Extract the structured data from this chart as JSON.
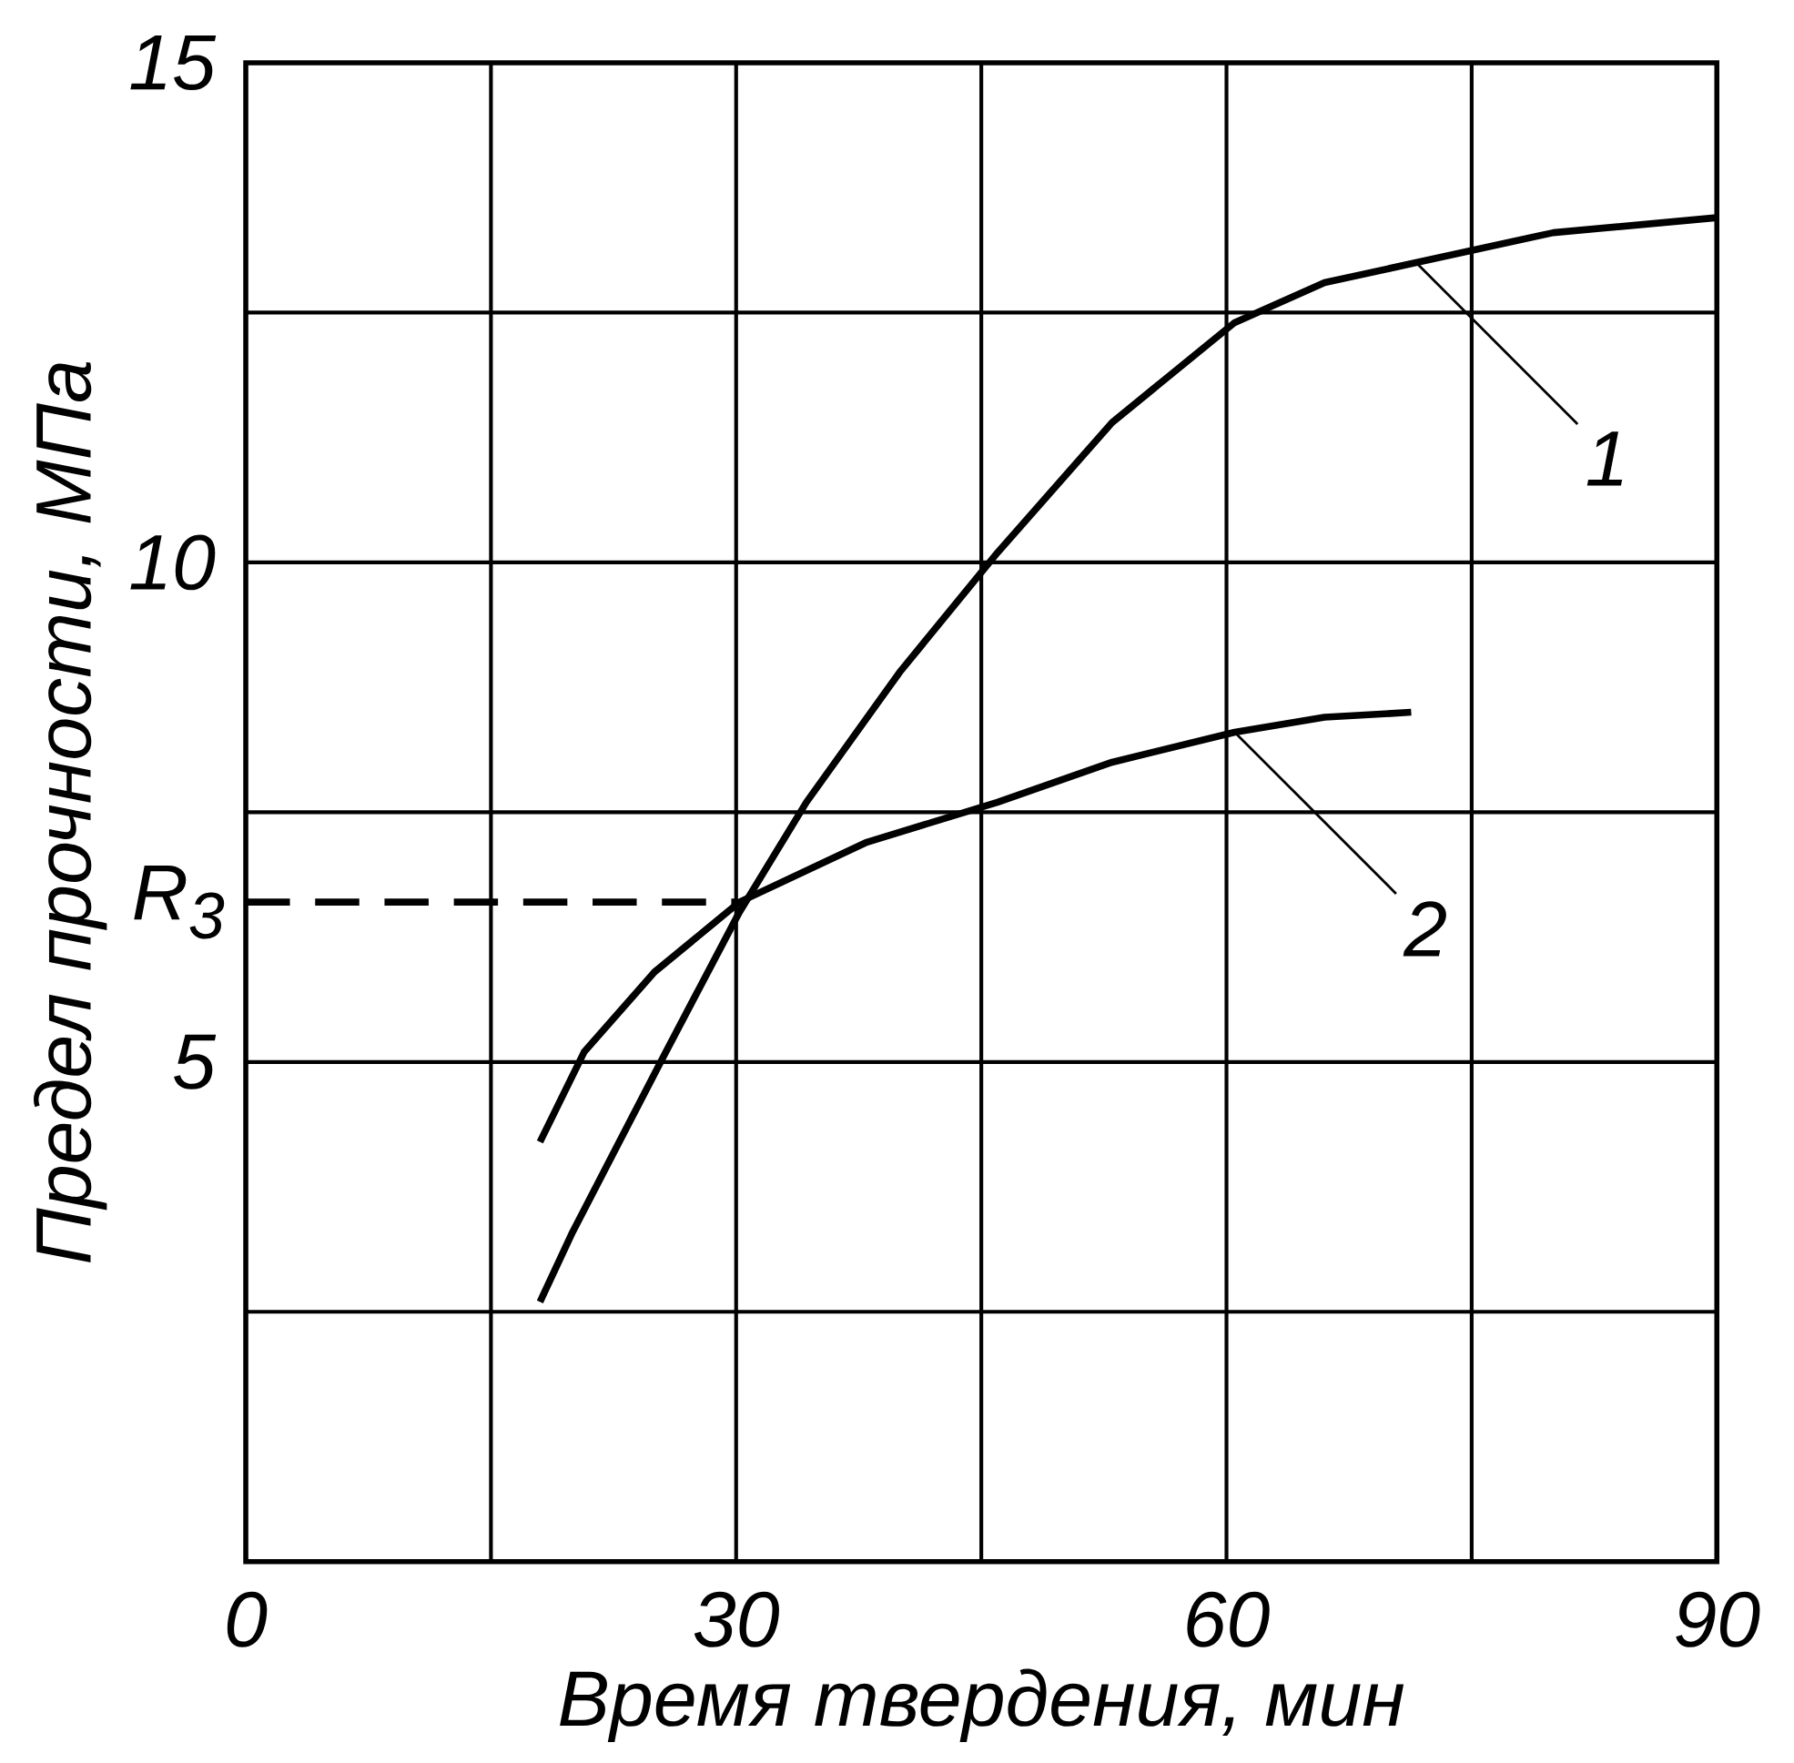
{
  "chart_data": {
    "type": "line",
    "xlabel": "Время твердения, мин",
    "ylabel": "Предел прочности, МПа",
    "xlim": [
      0,
      90
    ],
    "ylim": [
      0,
      15
    ],
    "xticks": [
      0,
      {
        "value": 15,
        "label": null
      },
      30,
      {
        "value": 45,
        "label": null
      },
      60,
      {
        "value": 75,
        "label": null
      },
      90
    ],
    "yticks": [
      {
        "value": 0,
        "label": null
      },
      {
        "value": 2.5,
        "label": null
      },
      5,
      {
        "value": 7.5,
        "label": null
      },
      10,
      {
        "value": 12.5,
        "label": null
      },
      15
    ],
    "grid": true,
    "marker": "none",
    "annotations": [
      {
        "text": "R$_{3}$",
        "x": 0,
        "y": 6.6
      }
    ],
    "series": [
      {
        "name": "1",
        "color": "#000000",
        "line_style": "solid",
        "x": [
          18,
          20,
          25.6,
          30.2,
          34.3,
          40,
          46,
          53,
          60.5,
          66,
          71.6,
          80,
          90
        ],
        "values": [
          2.6,
          3.3,
          5.07,
          6.5,
          7.6,
          8.9,
          10.1,
          11.4,
          12.4,
          12.8,
          13.0,
          13.3,
          13.45
        ]
      },
      {
        "name": "2",
        "color": "#000000",
        "line_style": "solid",
        "x": [
          18,
          20.7,
          25,
          30.2,
          38,
          46,
          53,
          60.5,
          66,
          71.3
        ],
        "values": [
          4.2,
          5.1,
          5.9,
          6.6,
          7.2,
          7.6,
          8.0,
          8.3,
          8.45,
          8.5
        ]
      },
      {
        "color": "#000000",
        "line_style": "dashed",
        "x": [
          0,
          30
        ],
        "values": [
          6.6,
          6.6
        ]
      }
    ]
  }
}
